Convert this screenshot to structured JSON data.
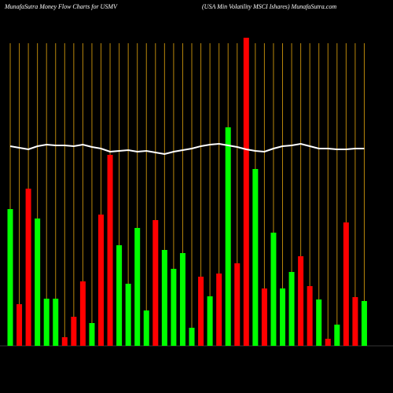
{
  "chart_data": {
    "type": "bar",
    "title": "MunafaSutra  Money Flow  Charts for USMV",
    "subtitle": "(USA Min  Volatility MSCI Ishares) MunafaSutra.com",
    "values": [
      174,
      53,
      200,
      162,
      60,
      60,
      11,
      37,
      82,
      29,
      167,
      243,
      128,
      79,
      150,
      45,
      160,
      122,
      98,
      118,
      23,
      88,
      63,
      92,
      278,
      105,
      392,
      225,
      73,
      144,
      73,
      94,
      114,
      76,
      59,
      9,
      27,
      157,
      62,
      57
    ],
    "colors": [
      "#00ff00",
      "#ff0000",
      "#ff0000",
      "#00ff00",
      "#00ff00",
      "#00ff00",
      "#ff0000",
      "#ff0000",
      "#ff0000",
      "#00ff00",
      "#ff0000",
      "#ff0000",
      "#00ff00",
      "#00ff00",
      "#00ff00",
      "#00ff00",
      "#ff0000",
      "#00ff00",
      "#00ff00",
      "#00ff00",
      "#00ff00",
      "#ff0000",
      "#00ff00",
      "#ff0000",
      "#00ff00",
      "#ff0000",
      "#ff0000",
      "#00ff00",
      "#ff0000",
      "#00ff00",
      "#00ff00",
      "#00ff00",
      "#ff0000",
      "#ff0000",
      "#00ff00",
      "#ff0000",
      "#00ff00",
      "#ff0000",
      "#ff0000",
      "#00ff00"
    ],
    "line_values": [
      254,
      252,
      250,
      254,
      256,
      255,
      255,
      254,
      256,
      253,
      251,
      247,
      248,
      249,
      247,
      248,
      246,
      244,
      247,
      249,
      251,
      254,
      256,
      257,
      255,
      253,
      250,
      248,
      247,
      251,
      254,
      255,
      257,
      254,
      251,
      251,
      250,
      250,
      251,
      251
    ],
    "line_color": "#ffffff",
    "grid_color": "#b8860b",
    "ylim": [
      0,
      440
    ]
  }
}
